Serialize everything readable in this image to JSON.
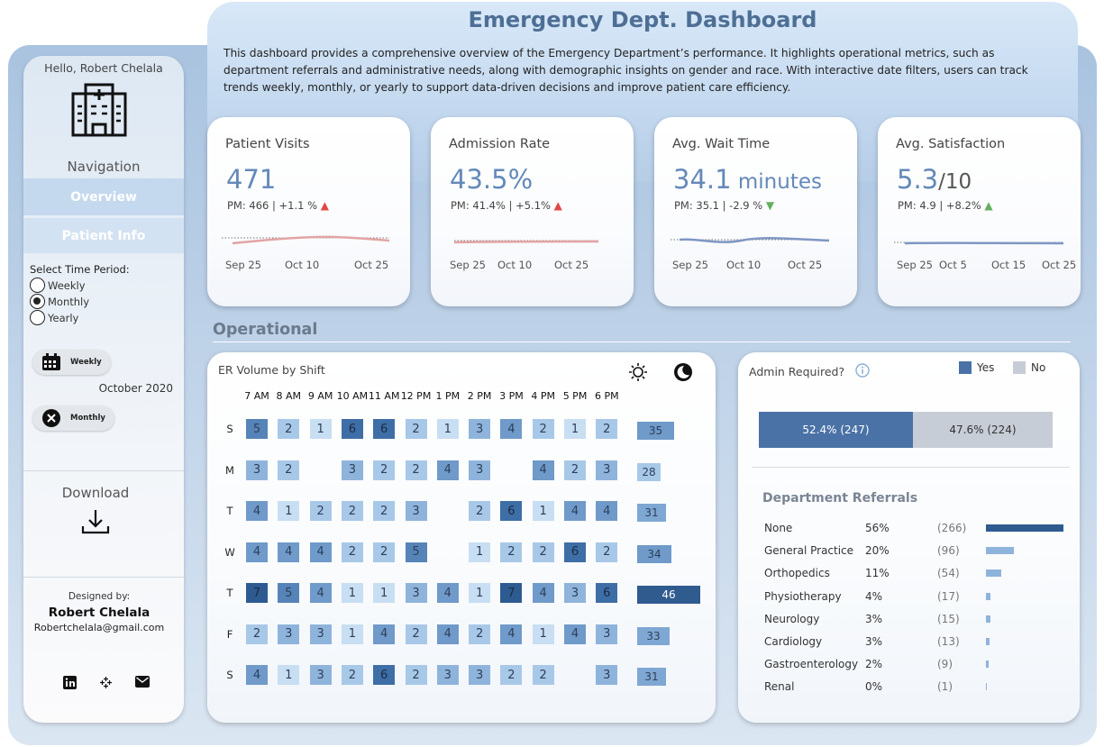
{
  "header": {
    "title": "Emergency Dept. Dashboard",
    "description": "This dashboard provides a comprehensive overview of the Emergency Department’s performance. It highlights operational metrics, such as department referrals and administrative needs, along with demographic insights on gender and race. With interactive date filters, users can track trends weekly, monthly, or yearly to support data-driven decisions and improve patient care efficiency."
  },
  "sidebar": {
    "greeting": "Hello, Robert Chelala",
    "nav_title": "Navigation",
    "nav_overview": "Overview",
    "nav_patient": "Patient Info",
    "period_label": "Select Time Period:",
    "periods": [
      {
        "label": "Weekly",
        "selected": false
      },
      {
        "label": "Monthly",
        "selected": true
      },
      {
        "label": "Yearly",
        "selected": false
      }
    ],
    "weekly_pill": "Weekly",
    "monthly_pill": "Monthly",
    "current_month": "October 2020",
    "download_label": "Download",
    "designed_by": "Designed by:",
    "designer_name": "Robert Chelala",
    "designer_email": "Robertchelala@gmail.com",
    "icons": {
      "hospital": "hospital-icon",
      "calendar": "calendar-icon",
      "close": "close-icon",
      "download": "download-icon",
      "linkedin": "linkedin-icon",
      "tableau": "tableau-icon",
      "mail": "mail-icon"
    }
  },
  "kpis": [
    {
      "title": "Patient Visits",
      "value": "471",
      "unit": "",
      "sub": "",
      "pm": "PM: 466 | +1.1 %",
      "trend": "up",
      "trend_color": "#e04848",
      "spark_color": "#e3a4a4",
      "axis": [
        {
          "label": "Sep 25",
          "left": 20
        },
        {
          "label": "Oct 10",
          "left": 86
        },
        {
          "label": "Oct 25",
          "left": 163
        }
      ]
    },
    {
      "title": "Admission Rate",
      "value": "43.5%",
      "unit": "",
      "sub": "",
      "pm": "PM: 41.4% | +5.1%",
      "trend": "up",
      "trend_color": "#e04848",
      "spark_color": "#e3a4a4",
      "axis": [
        {
          "label": "Sep 25",
          "left": 21
        },
        {
          "label": "Oct 10",
          "left": 74
        },
        {
          "label": "Oct 25",
          "left": 137
        }
      ]
    },
    {
      "title": "Avg. Wait Time",
      "value": "34.1",
      "unit": " minutes",
      "sub": "",
      "pm": "PM: 35.1 | -2.9 %",
      "trend": "down",
      "trend_color": "#62b060",
      "spark_color": "#7f97c4",
      "axis": [
        {
          "label": "Sep 25",
          "left": 20
        },
        {
          "label": "Oct 10",
          "left": 80
        },
        {
          "label": "Oct 25",
          "left": 148
        }
      ]
    },
    {
      "title": "Avg. Satisfaction",
      "value": "5.3",
      "unit": "",
      "sub": "/10",
      "pm": "PM: 4.9 | +8.2%",
      "trend": "up",
      "trend_color": "#62b060",
      "spark_color": "#7f97c4",
      "axis": [
        {
          "label": "Sep 25",
          "left": 21
        },
        {
          "label": "Oct 5",
          "left": 68
        },
        {
          "label": "Oct 15",
          "left": 126
        },
        {
          "label": "Oct 25",
          "left": 182
        }
      ]
    }
  ],
  "operational_title": "Operational",
  "er_volume": {
    "title": "ER Volume by Shift",
    "icons": {
      "day": "sun-icon",
      "night": "moon-icon"
    },
    "hours": [
      "7 AM",
      "8 AM",
      "9 AM",
      "10 AM",
      "11 AM",
      "12 PM",
      "1 PM",
      "2 PM",
      "3 PM",
      "4 PM",
      "5 PM",
      "6 PM"
    ],
    "days": [
      "S",
      "M",
      "T",
      "W",
      "T",
      "F",
      "S"
    ],
    "grid": [
      [
        5,
        2,
        1,
        6,
        6,
        2,
        1,
        3,
        4,
        2,
        1,
        2
      ],
      [
        3,
        2,
        null,
        3,
        2,
        2,
        4,
        3,
        null,
        4,
        2,
        3
      ],
      [
        4,
        1,
        2,
        2,
        2,
        3,
        null,
        2,
        6,
        1,
        4,
        4
      ],
      [
        4,
        4,
        4,
        2,
        2,
        5,
        null,
        1,
        2,
        2,
        6,
        2
      ],
      [
        7,
        5,
        4,
        1,
        1,
        3,
        4,
        1,
        7,
        4,
        3,
        6
      ],
      [
        2,
        3,
        3,
        1,
        4,
        2,
        4,
        2,
        4,
        1,
        4,
        3
      ],
      [
        4,
        1,
        3,
        2,
        6,
        2,
        3,
        3,
        2,
        2,
        null,
        3
      ]
    ],
    "totals": [
      35,
      28,
      31,
      34,
      46,
      33,
      31
    ]
  },
  "admin": {
    "title": "Admin Required?",
    "legend_yes": "Yes",
    "legend_no": "No",
    "yes_color": "#4a72a6",
    "no_color": "#c7cdd6",
    "yes_pct": 52.4,
    "yes_label": "52.4% (247)",
    "no_label": "47.6% (224)"
  },
  "referrals": {
    "title": "Department Referrals",
    "bar_color": "#2f5b8f",
    "items": [
      {
        "name": "None",
        "pct": "56%",
        "count": "(266)",
        "value": 266
      },
      {
        "name": "General Practice",
        "pct": "20%",
        "count": "(96)",
        "value": 96
      },
      {
        "name": "Orthopedics",
        "pct": "11%",
        "count": "(54)",
        "value": 54
      },
      {
        "name": "Physiotherapy",
        "pct": "4%",
        "count": "(17)",
        "value": 17
      },
      {
        "name": "Neurology",
        "pct": "3%",
        "count": "(15)",
        "value": 15
      },
      {
        "name": "Cardiology",
        "pct": "3%",
        "count": "(13)",
        "value": 13
      },
      {
        "name": "Gastroenterology",
        "pct": "2%",
        "count": "(9)",
        "value": 9
      },
      {
        "name": "Renal",
        "pct": "0%",
        "count": "(1)",
        "value": 1
      }
    ]
  }
}
